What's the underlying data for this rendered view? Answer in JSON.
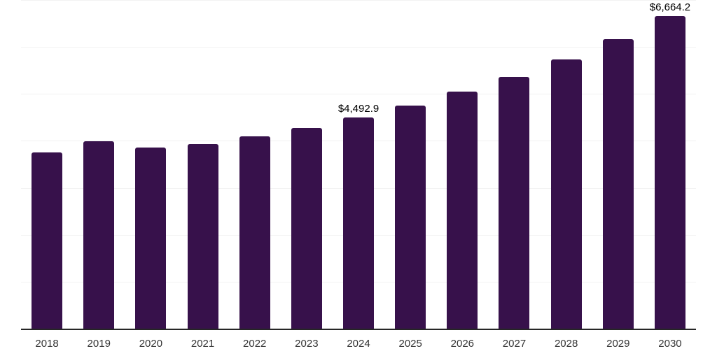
{
  "chart_data": {
    "type": "bar",
    "title": "",
    "xlabel": "",
    "ylabel": "",
    "categories": [
      "2018",
      "2019",
      "2020",
      "2021",
      "2022",
      "2023",
      "2024",
      "2025",
      "2026",
      "2027",
      "2028",
      "2029",
      "2030"
    ],
    "values": [
      3755,
      3990,
      3865,
      3935,
      4090,
      4270,
      4492.9,
      4750,
      5050,
      5355,
      5730,
      6160,
      6664.2
    ],
    "data_labels": {
      "2024": "$4,492.9",
      "2030": "$6,664.2"
    },
    "ylim": [
      0,
      7000
    ],
    "gridline_step": 1000,
    "grid": true,
    "legend": false,
    "colors": {
      "bar": "#37114B",
      "gridline": "#f2f2f2",
      "axis_line": "#262626",
      "tick_label": "#333333",
      "data_label": "#000000",
      "background": "#ffffff"
    }
  }
}
